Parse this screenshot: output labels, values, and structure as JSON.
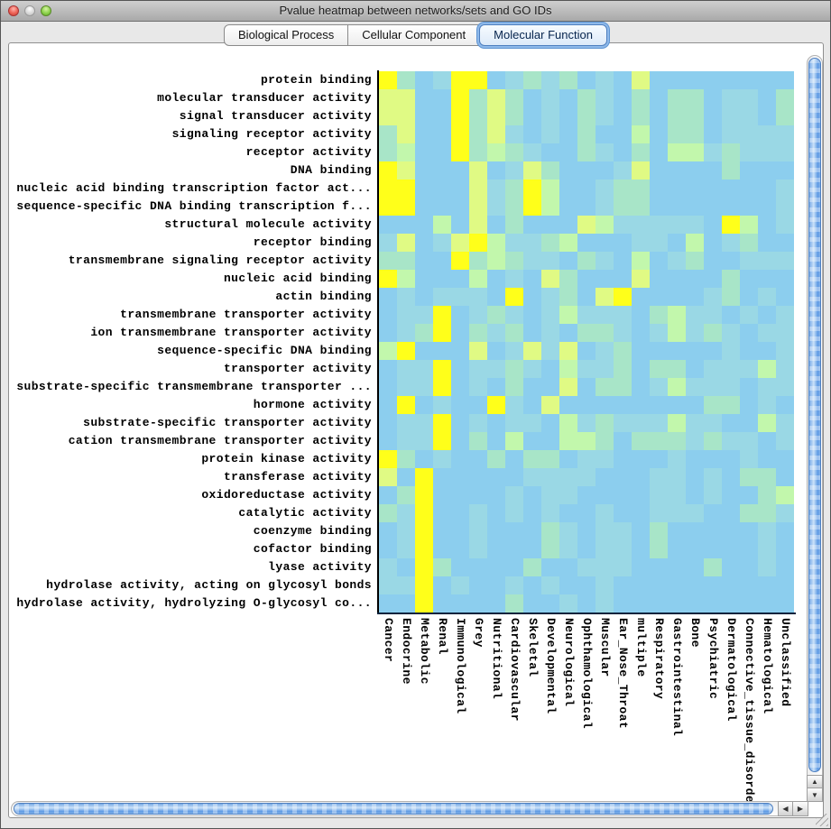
{
  "window": {
    "title": "Pvalue heatmap between networks/sets and GO IDs"
  },
  "tabs": {
    "items": [
      {
        "label": "Biological Process",
        "selected": false
      },
      {
        "label": "Cellular Component",
        "selected": false
      },
      {
        "label": "Molecular Function",
        "selected": true
      }
    ]
  },
  "scrollbars": {
    "up_arrow": "▲",
    "down_arrow": "▼",
    "left_arrow": "◀",
    "right_arrow": "▶"
  },
  "chart_data": {
    "type": "heatmap",
    "title": "Pvalue heatmap between networks/sets and GO IDs",
    "selected_view": "Molecular Function",
    "x_labels": [
      "Cancer",
      "Endocrine",
      "Metabolic",
      "Renal",
      "Immunological",
      "Grey",
      "Nutritional",
      "Cardiovascular",
      "Skeletal",
      "Developmental",
      "Neurological",
      "Ophthamological",
      "Muscular",
      "Ear_Nose_Throat",
      "multiple",
      "Respiratory",
      "Gastrointestinal",
      "Bone",
      "Psychiatric",
      "Dermatological",
      "Connective_tissue_disorder",
      "Hematological",
      "Unclassified"
    ],
    "y_labels": [
      "protein binding",
      "molecular transducer activity",
      "signal transducer activity",
      "signaling receptor activity",
      "receptor activity",
      "DNA binding",
      "nucleic acid binding transcription factor act...",
      "sequence-specific DNA binding transcription f...",
      "structural molecule activity",
      "receptor binding",
      "transmembrane signaling receptor activity",
      "nucleic acid binding",
      "actin binding",
      "transmembrane transporter activity",
      "ion transmembrane transporter activity",
      "sequence-specific DNA binding",
      "transporter activity",
      "substrate-specific transmembrane transporter ...",
      "hormone activity",
      "substrate-specific transporter activity",
      "cation transmembrane transporter activity",
      "protein kinase activity",
      "transferase activity",
      "oxidoreductase activity",
      "catalytic activity",
      "coenzyme binding",
      "cofactor binding",
      "lyase activity",
      "hydrolase activity, acting on glycosyl bonds",
      "hydrolase activity, hydrolyzing O-glycosyl co..."
    ],
    "value_scale": "color significance level 0 (light blue, low) to 5 (yellow, high)",
    "palette": {
      "0": "#8CCEEE",
      "1": "#9AD8E5",
      "2": "#A8E5C8",
      "3": "#C2F7AC",
      "4": "#E0FA84",
      "5": "#FFFF1A"
    },
    "levels": [
      "52015501212010400000000",
      "44005242010210202201102",
      "44005242010210202201102",
      "24005241010200302201111",
      "23005232100210203312111",
      "54000401420001400002000",
      "55000412530012200000001",
      "55000412530012200000001",
      "00030402000431111105301",
      "14014531123000110301200",
      "22005232110210301200111",
      "53000301042000400002000",
      "01011105012045000012010",
      "01150121013111023110101",
      "01250212010221013121011",
      "35000401414012000001001",
      "01150112103112022011131",
      "01150102004022013111011",
      "05010051040000000022010",
      "01150101103121113110031",
      "01150203003320222121101",
      "52010020220110001000100",
      "40500000111100011010220",
      "02500001011000011010023",
      "21500101010010011100221",
      "01500100021011020000010",
      "01500100021011020000010",
      "10520000200111000020010",
      "11501001010010000000000",
      "00500002001010000000000"
    ]
  }
}
